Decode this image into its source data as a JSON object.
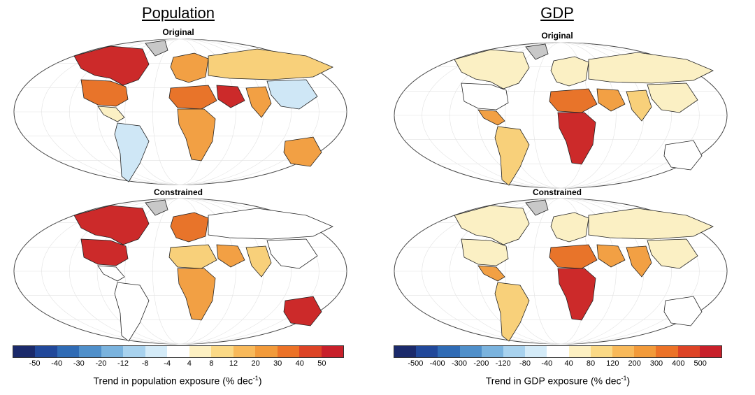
{
  "panels": [
    {
      "title": "Population",
      "maps": [
        "Original",
        "Constrained"
      ],
      "ticks": [
        "-50",
        "-40",
        "-30",
        "-20",
        "-12",
        "-8",
        "-4",
        "4",
        "8",
        "12",
        "20",
        "30",
        "40",
        "50"
      ],
      "label_main": "Trend in population exposure (% dec",
      "label_sup": "-1",
      "label_end": ")"
    },
    {
      "title": "GDP",
      "maps": [
        "Original",
        "Constrained"
      ],
      "ticks": [
        "-500",
        "-400",
        "-300",
        "-200",
        "-120",
        "-80",
        "-40",
        "40",
        "80",
        "120",
        "200",
        "300",
        "400",
        "500"
      ],
      "label_main": "Trend in GDP exposure (% dec",
      "label_sup": "-1",
      "label_end": ")"
    }
  ],
  "colorbar_colors": [
    "#1b2a6b",
    "#21489a",
    "#2f6bb5",
    "#4f8fca",
    "#7ab3de",
    "#a8d2ee",
    "#d4ebf8",
    "#ffffff",
    "#fdf0c2",
    "#fbd986",
    "#f8b95a",
    "#f29a3a",
    "#ec7227",
    "#dd4325",
    "#c8202a"
  ],
  "legend_colors": {
    "negative_light": "#cfe7f6",
    "white": "#ffffff",
    "pale": "#fbf0c4",
    "yellow": "#f8d07a",
    "orange": "#f2a044",
    "dark_orange": "#e8742a",
    "red": "#cc2a2a",
    "grey": "#c8c8c8"
  }
}
